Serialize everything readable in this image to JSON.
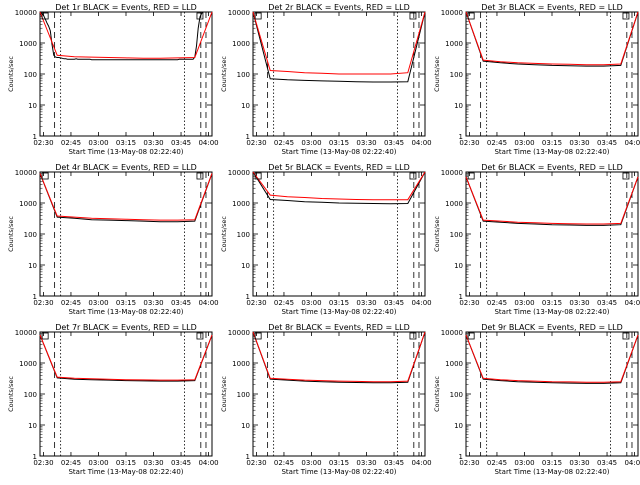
{
  "chart_data": {
    "type": "line",
    "layout": "3x3 grid",
    "y_scale": "log",
    "ylim": [
      1,
      10000
    ],
    "ylabel": "Counts/sec",
    "xlabel": "Start Time (13-May-08 02:22:40)",
    "x_tick_labels": [
      "02:30",
      "02:45",
      "03:00",
      "03:15",
      "03:30",
      "03:45",
      "04:00"
    ],
    "y_tick_labels": [
      "1",
      "10",
      "100",
      "1000",
      "10000"
    ],
    "colors": {
      "events": "#000000",
      "lld": "#ff0000"
    },
    "x_range_min": [
      0,
      100
    ],
    "panels": [
      {
        "title": "Det 1r BLACK = Events, RED = LLD",
        "series": [
          {
            "name": "Events",
            "color": "#000000",
            "x": [
              0,
              1,
              2,
              3,
              4,
              5,
              6,
              7,
              8,
              9,
              10,
              11,
              12,
              13,
              14,
              15,
              16,
              17,
              18,
              19,
              20,
              21,
              22,
              23,
              24,
              25,
              26,
              27,
              28,
              29,
              30,
              31,
              32,
              33,
              34,
              35,
              36,
              37,
              38,
              39,
              40,
              41,
              42,
              43,
              44,
              45,
              46,
              47,
              48,
              49,
              50,
              51,
              52,
              53,
              54,
              55,
              56,
              57,
              58,
              59,
              60,
              61,
              62,
              63,
              64,
              65,
              66,
              67,
              68,
              69,
              70,
              71,
              72,
              73,
              74,
              75,
              76,
              77,
              78,
              79,
              80,
              81,
              82,
              83,
              84,
              85,
              86,
              87,
              88,
              89,
              90,
              91,
              92,
              93,
              94,
              95,
              96,
              97,
              98,
              99,
              100
            ],
            "y": [
              10000,
              9000,
              8000,
              6000,
              4500,
              3500,
              2500,
              900,
              400,
              350,
              340,
              340,
              330,
              320,
              310,
              310,
              300,
              300,
              300,
              300,
              300,
              310,
              300,
              300,
              300,
              300,
              300,
              300,
              300,
              300,
              290,
              290,
              290,
              290,
              290,
              290,
              290,
              290,
              290,
              290,
              290,
              290,
              290,
              290,
              290,
              290,
              290,
              290,
              290,
              290,
              290,
              290,
              290,
              290,
              290,
              290,
              290,
              290,
              290,
              290,
              290,
              290,
              290,
              290,
              290,
              290,
              290,
              290,
              290,
              290,
              290,
              290,
              290,
              290,
              290,
              290,
              290,
              290,
              290,
              290,
              290,
              300,
              300,
              300,
              300,
              300,
              300,
              300,
              300,
              300,
              350,
              800,
              3000,
              7000,
              9000,
              10000,
              10000,
              10000,
              10000,
              10000,
              10000
            ]
          },
          {
            "name": "LLD",
            "color": "#ff0000",
            "x": [
              0,
              10,
              20,
              30,
              40,
              50,
              60,
              70,
              80,
              90,
              100
            ],
            "y": [
              10000,
              400,
              360,
              350,
              340,
              330,
              320,
              320,
              330,
              340,
              10000
            ]
          }
        ]
      },
      {
        "title": "Det 2r BLACK = Events, RED = LLD",
        "series": [
          {
            "name": "Events",
            "color": "#000000",
            "x": [
              0,
              10,
              20,
              30,
              40,
              50,
              60,
              70,
              80,
              90,
              100
            ],
            "y": [
              10000,
              70,
              65,
              62,
              60,
              58,
              56,
              55,
              55,
              56,
              10000
            ]
          },
          {
            "name": "LLD",
            "color": "#ff0000",
            "x": [
              0,
              10,
              20,
              30,
              40,
              50,
              60,
              70,
              80,
              90,
              100
            ],
            "y": [
              10000,
              130,
              120,
              110,
              105,
              100,
              100,
              100,
              100,
              110,
              10000
            ]
          }
        ]
      },
      {
        "title": "Det 3r BLACK = Events, RED = LLD",
        "series": [
          {
            "name": "Events",
            "color": "#000000",
            "x": [
              0,
              10,
              20,
              30,
              40,
              50,
              60,
              70,
              80,
              90,
              100
            ],
            "y": [
              10000,
              260,
              230,
              210,
              200,
              190,
              185,
              180,
              180,
              190,
              10000
            ]
          },
          {
            "name": "LLD",
            "color": "#ff0000",
            "x": [
              0,
              10,
              20,
              30,
              40,
              50,
              60,
              70,
              80,
              90,
              100
            ],
            "y": [
              10000,
              280,
              250,
              230,
              220,
              210,
              205,
              200,
              200,
              210,
              10000
            ]
          }
        ]
      },
      {
        "title": "Det 4r BLACK = Events, RED = LLD",
        "series": [
          {
            "name": "Events",
            "color": "#000000",
            "x": [
              0,
              10,
              20,
              30,
              40,
              50,
              60,
              70,
              80,
              90,
              100
            ],
            "y": [
              9000,
              350,
              320,
              290,
              280,
              270,
              260,
              250,
              250,
              260,
              9000
            ]
          },
          {
            "name": "LLD",
            "color": "#ff0000",
            "x": [
              0,
              10,
              20,
              30,
              40,
              50,
              60,
              70,
              80,
              90,
              100
            ],
            "y": [
              9000,
              380,
              350,
              320,
              310,
              300,
              290,
              280,
              280,
              290,
              9000
            ]
          }
        ]
      },
      {
        "title": "Det 5r BLACK = Events, RED = LLD",
        "series": [
          {
            "name": "Events",
            "color": "#000000",
            "x": [
              0,
              10,
              20,
              30,
              40,
              50,
              60,
              70,
              80,
              90,
              100
            ],
            "y": [
              10000,
              1300,
              1200,
              1100,
              1050,
              1000,
              980,
              960,
              950,
              960,
              10000
            ]
          },
          {
            "name": "LLD",
            "color": "#ff0000",
            "x": [
              0,
              10,
              20,
              30,
              40,
              50,
              60,
              70,
              80,
              90,
              100
            ],
            "y": [
              10000,
              1800,
              1600,
              1500,
              1400,
              1350,
              1300,
              1280,
              1270,
              1280,
              10000
            ]
          }
        ]
      },
      {
        "title": "Det 6r BLACK = Events, RED = LLD",
        "series": [
          {
            "name": "Events",
            "color": "#000000",
            "x": [
              0,
              10,
              20,
              30,
              40,
              50,
              60,
              70,
              80,
              90,
              100
            ],
            "y": [
              7000,
              260,
              240,
              220,
              210,
              200,
              195,
              190,
              190,
              200,
              7000
            ]
          },
          {
            "name": "LLD",
            "color": "#ff0000",
            "x": [
              0,
              10,
              20,
              30,
              40,
              50,
              60,
              70,
              80,
              90,
              100
            ],
            "y": [
              7000,
              280,
              260,
              240,
              230,
              220,
              215,
              210,
              210,
              220,
              7000
            ]
          }
        ]
      },
      {
        "title": "Det 7r BLACK = Events, RED = LLD",
        "series": [
          {
            "name": "Events",
            "color": "#000000",
            "x": [
              0,
              10,
              20,
              30,
              40,
              50,
              60,
              70,
              80,
              90,
              100
            ],
            "y": [
              8000,
              330,
              300,
              290,
              280,
              270,
              265,
              260,
              260,
              270,
              8000
            ]
          },
          {
            "name": "LLD",
            "color": "#ff0000",
            "x": [
              0,
              10,
              20,
              30,
              40,
              50,
              60,
              70,
              80,
              90,
              100
            ],
            "y": [
              8000,
              350,
              320,
              310,
              300,
              290,
              285,
              280,
              280,
              290,
              8000
            ]
          }
        ]
      },
      {
        "title": "Det 8r BLACK = Events, RED = LLD",
        "series": [
          {
            "name": "Events",
            "color": "#000000",
            "x": [
              0,
              10,
              20,
              30,
              40,
              50,
              60,
              70,
              80,
              90,
              100
            ],
            "y": [
              10000,
              300,
              280,
              260,
              250,
              240,
              235,
              230,
              230,
              240,
              10000
            ]
          },
          {
            "name": "LLD",
            "color": "#ff0000",
            "x": [
              0,
              10,
              20,
              30,
              40,
              50,
              60,
              70,
              80,
              90,
              100
            ],
            "y": [
              10000,
              320,
              300,
              280,
              270,
              260,
              255,
              250,
              250,
              260,
              10000
            ]
          }
        ]
      },
      {
        "title": "Det 9r BLACK = Events, RED = LLD",
        "series": [
          {
            "name": "Events",
            "color": "#000000",
            "x": [
              0,
              10,
              20,
              30,
              40,
              50,
              60,
              70,
              80,
              90,
              100
            ],
            "y": [
              8000,
              300,
              270,
              250,
              240,
              230,
              225,
              220,
              220,
              230,
              8000
            ]
          },
          {
            "name": "LLD",
            "color": "#ff0000",
            "x": [
              0,
              10,
              20,
              30,
              40,
              50,
              60,
              70,
              80,
              90,
              100
            ],
            "y": [
              8000,
              320,
              290,
              270,
              260,
              250,
              245,
              240,
              240,
              250,
              8000
            ]
          }
        ]
      }
    ]
  }
}
